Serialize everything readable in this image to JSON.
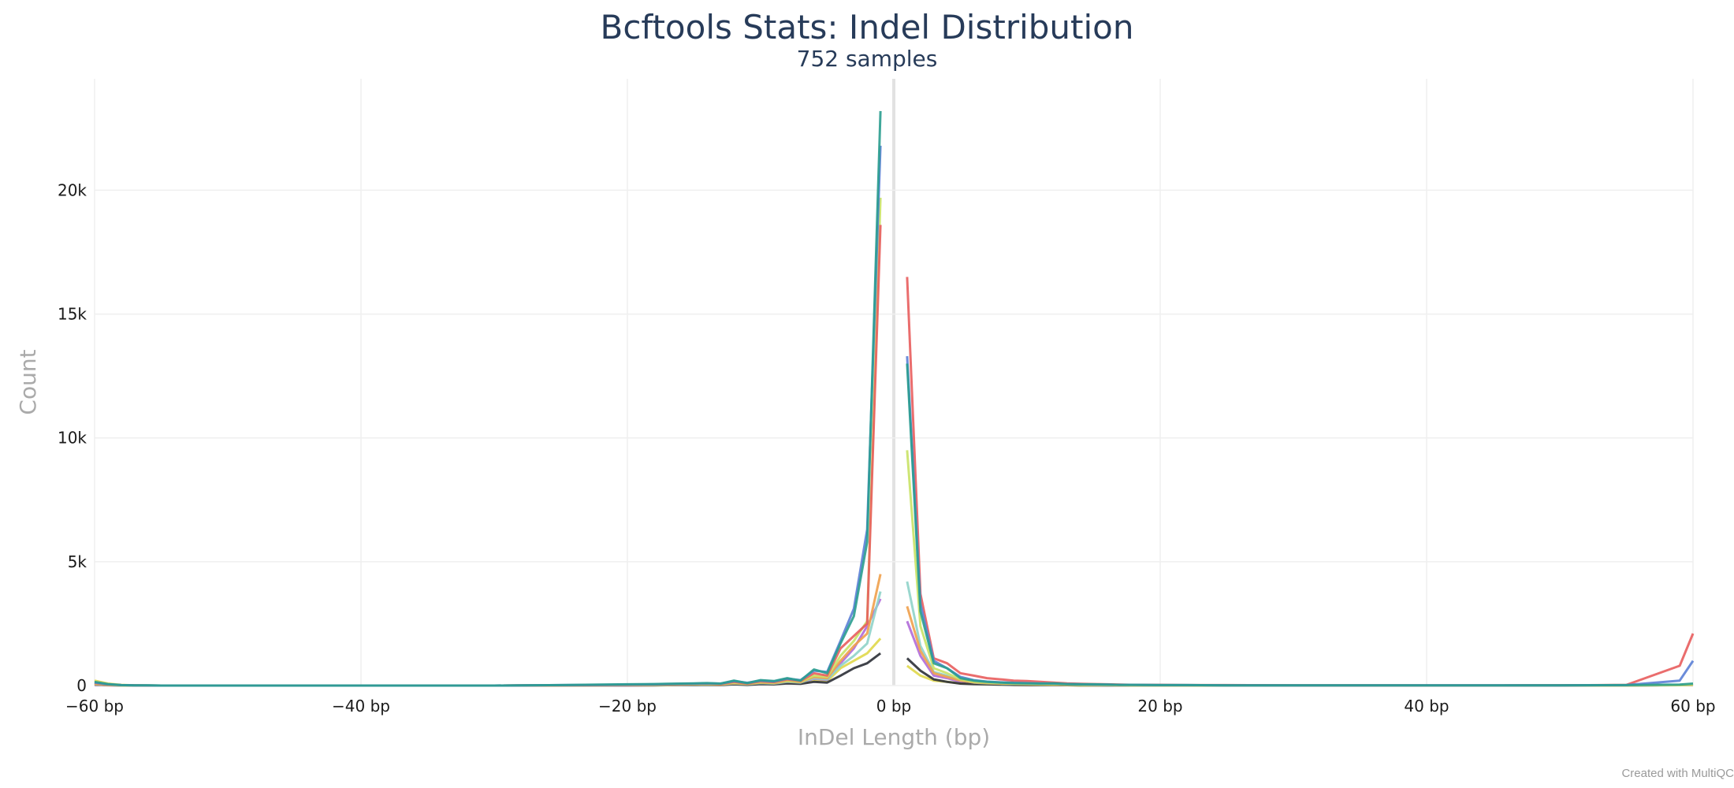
{
  "chart_data": {
    "type": "line",
    "title": "Bcftools Stats: Indel Distribution",
    "subtitle": "752 samples",
    "xlabel": "InDel Length (bp)",
    "ylabel": "Count",
    "xlim": [
      -60,
      60
    ],
    "ylim": [
      0,
      24500
    ],
    "x_ticks": [
      -60,
      -40,
      -20,
      0,
      20,
      40,
      60
    ],
    "x_tick_labels": [
      "−60 bp",
      "−40 bp",
      "−20 bp",
      "0 bp",
      "20 bp",
      "40 bp",
      "60 bp"
    ],
    "y_ticks": [
      0,
      5000,
      10000,
      15000,
      20000
    ],
    "y_tick_labels": [
      "0",
      "5k",
      "10k",
      "15k",
      "20k"
    ],
    "grid": true,
    "legend": "none",
    "x": [
      -60,
      -59,
      -58,
      -57,
      -56,
      -55,
      -50,
      -45,
      -40,
      -35,
      -30,
      -25,
      -22,
      -20,
      -18,
      -17,
      -16,
      -15,
      -14,
      -13,
      -12,
      -11,
      -10,
      -9,
      -8,
      -7,
      -6,
      -5,
      -4,
      -3,
      -2,
      -1,
      1,
      2,
      3,
      4,
      5,
      6,
      7,
      8,
      9,
      10,
      11,
      12,
      13,
      14,
      15,
      16,
      17,
      18,
      20,
      22,
      25,
      30,
      35,
      40,
      45,
      50,
      55,
      59,
      60
    ],
    "series": [
      {
        "color": "#2a9d8f",
        "values": [
          150,
          60,
          20,
          10,
          5,
          0,
          0,
          0,
          0,
          0,
          0,
          20,
          40,
          50,
          60,
          70,
          80,
          90,
          100,
          80,
          200,
          100,
          220,
          180,
          300,
          200,
          650,
          500,
          1700,
          2800,
          5800,
          23200,
          13000,
          3000,
          900,
          700,
          300,
          200,
          150,
          120,
          100,
          90,
          80,
          90,
          60,
          50,
          50,
          40,
          30,
          30,
          20,
          20,
          10,
          10,
          5,
          5,
          5,
          10,
          20,
          40,
          80
        ]
      },
      {
        "color": "#5b7fd6",
        "values": [
          120,
          50,
          20,
          10,
          5,
          0,
          0,
          0,
          0,
          0,
          0,
          20,
          30,
          40,
          50,
          60,
          70,
          80,
          90,
          80,
          180,
          110,
          200,
          170,
          280,
          220,
          600,
          550,
          1800,
          3100,
          6300,
          21800,
          13300,
          3300,
          1000,
          700,
          350,
          220,
          160,
          130,
          110,
          100,
          90,
          80,
          60,
          50,
          40,
          40,
          30,
          30,
          20,
          20,
          10,
          10,
          5,
          5,
          5,
          10,
          20,
          200,
          1000
        ]
      },
      {
        "color": "#e85d5d",
        "values": [
          100,
          40,
          20,
          10,
          0,
          0,
          0,
          0,
          0,
          0,
          0,
          10,
          20,
          30,
          40,
          50,
          60,
          70,
          80,
          60,
          150,
          80,
          170,
          140,
          250,
          180,
          500,
          400,
          1500,
          2000,
          2500,
          18600,
          16500,
          3700,
          1100,
          900,
          500,
          400,
          300,
          250,
          200,
          180,
          150,
          120,
          90,
          70,
          60,
          50,
          40,
          30,
          30,
          20,
          20,
          10,
          10,
          5,
          5,
          10,
          30,
          800,
          2100
        ]
      },
      {
        "color": "#c9e265",
        "values": [
          80,
          30,
          10,
          5,
          0,
          0,
          0,
          0,
          0,
          0,
          0,
          10,
          20,
          20,
          30,
          40,
          50,
          60,
          60,
          50,
          120,
          70,
          140,
          120,
          200,
          160,
          400,
          350,
          1200,
          1800,
          2600,
          19700,
          9500,
          2400,
          700,
          500,
          250,
          150,
          120,
          100,
          80,
          70,
          60,
          50,
          40,
          30,
          30,
          20,
          20,
          10,
          10,
          10,
          5,
          5,
          5,
          0,
          0,
          5,
          10,
          20,
          40
        ]
      },
      {
        "color": "#f0a04b",
        "values": [
          60,
          20,
          10,
          5,
          0,
          0,
          0,
          0,
          0,
          0,
          0,
          10,
          10,
          20,
          30,
          30,
          40,
          50,
          50,
          40,
          100,
          60,
          120,
          100,
          180,
          140,
          350,
          300,
          1000,
          1600,
          2100,
          4500,
          3200,
          1400,
          500,
          350,
          200,
          130,
          100,
          80,
          70,
          60,
          50,
          40,
          30,
          30,
          20,
          20,
          10,
          10,
          10,
          5,
          5,
          5,
          0,
          0,
          0,
          5,
          10,
          20,
          30
        ]
      },
      {
        "color": "#8fd3c9",
        "values": [
          50,
          20,
          10,
          0,
          0,
          0,
          0,
          0,
          0,
          0,
          0,
          5,
          10,
          15,
          20,
          25,
          30,
          35,
          40,
          35,
          80,
          50,
          100,
          80,
          150,
          120,
          300,
          250,
          800,
          1200,
          1700,
          3800,
          4200,
          1600,
          550,
          400,
          200,
          120,
          90,
          70,
          60,
          50,
          40,
          35,
          30,
          25,
          20,
          15,
          10,
          10,
          5,
          5,
          5,
          0,
          0,
          0,
          0,
          5,
          10,
          15,
          25
        ]
      },
      {
        "color": "#2b2f36",
        "values": [
          40,
          15,
          5,
          0,
          0,
          0,
          0,
          0,
          0,
          0,
          0,
          5,
          5,
          10,
          10,
          15,
          20,
          20,
          25,
          20,
          50,
          30,
          60,
          50,
          90,
          70,
          150,
          120,
          400,
          700,
          900,
          1300,
          1100,
          600,
          250,
          150,
          80,
          60,
          50,
          40,
          30,
          25,
          20,
          20,
          15,
          10,
          10,
          10,
          5,
          5,
          5,
          5,
          0,
          0,
          0,
          0,
          0,
          5,
          10,
          20,
          40
        ]
      },
      {
        "color": "#b06ad8",
        "values": [
          30,
          10,
          5,
          0,
          0,
          0,
          0,
          0,
          0,
          0,
          0,
          5,
          10,
          10,
          15,
          20,
          25,
          30,
          35,
          30,
          70,
          40,
          90,
          70,
          130,
          100,
          280,
          230,
          900,
          1500,
          2400,
          3500,
          2600,
          1200,
          400,
          300,
          150,
          100,
          80,
          60,
          50,
          40,
          35,
          30,
          25,
          20,
          15,
          10,
          10,
          5,
          5,
          5,
          0,
          0,
          0,
          0,
          0,
          5,
          10,
          15,
          20
        ]
      },
      {
        "color": "#e0d84a",
        "values": [
          200,
          80,
          30,
          10,
          5,
          0,
          0,
          0,
          0,
          0,
          0,
          5,
          10,
          15,
          20,
          25,
          30,
          30,
          35,
          30,
          60,
          40,
          80,
          60,
          110,
          90,
          220,
          180,
          700,
          1000,
          1300,
          1900,
          800,
          400,
          200,
          150,
          90,
          70,
          50,
          40,
          30,
          25,
          20,
          20,
          15,
          10,
          10,
          10,
          5,
          5,
          5,
          0,
          0,
          0,
          0,
          0,
          0,
          5,
          10,
          15,
          25
        ]
      }
    ]
  }
}
